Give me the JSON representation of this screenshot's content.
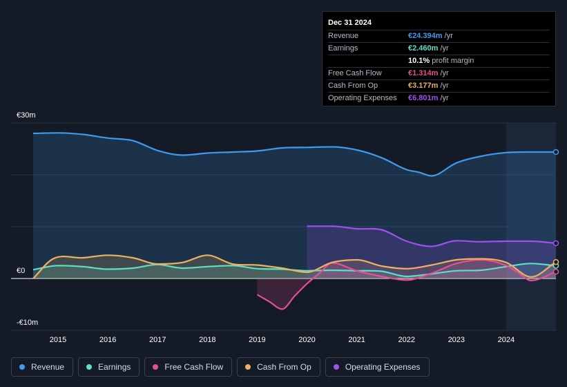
{
  "tooltip": {
    "date": "Dec 31 2024",
    "rows": [
      {
        "label": "Revenue",
        "value": "€24.394m",
        "unit": "/yr",
        "color": "#3d9bef"
      },
      {
        "label": "Earnings",
        "value": "€2.460m",
        "unit": "/yr",
        "color": "#5ce0c7"
      },
      {
        "label": "",
        "value": "10.1%",
        "unit": "profit margin",
        "color": "#ffffff"
      },
      {
        "label": "Free Cash Flow",
        "value": "€1.314m",
        "unit": "/yr",
        "color": "#e8508e"
      },
      {
        "label": "Cash From Op",
        "value": "€3.177m",
        "unit": "/yr",
        "color": "#efb060"
      },
      {
        "label": "Operating Expenses",
        "value": "€6.801m",
        "unit": "/yr",
        "color": "#a150f0"
      }
    ]
  },
  "legend": [
    {
      "label": "Revenue",
      "color": "#3d9bef"
    },
    {
      "label": "Earnings",
      "color": "#5ce0c7"
    },
    {
      "label": "Free Cash Flow",
      "color": "#e8508e"
    },
    {
      "label": "Cash From Op",
      "color": "#efb060"
    },
    {
      "label": "Operating Expenses",
      "color": "#a150f0"
    }
  ],
  "chart_data": {
    "type": "area",
    "title": "",
    "xlabel": "",
    "ylabel": "",
    "currency_unit": "€m",
    "ylim": [
      -10,
      30
    ],
    "yticks": [
      {
        "value": 30,
        "label": "€30m"
      },
      {
        "value": 0,
        "label": "€0"
      },
      {
        "value": -10,
        "label": "-€10m"
      }
    ],
    "xlim": [
      2014.5,
      2025.0
    ],
    "xticks": [
      {
        "value": 2015,
        "label": "2015"
      },
      {
        "value": 2016,
        "label": "2016"
      },
      {
        "value": 2017,
        "label": "2017"
      },
      {
        "value": 2018,
        "label": "2018"
      },
      {
        "value": 2019,
        "label": "2019"
      },
      {
        "value": 2020,
        "label": "2020"
      },
      {
        "value": 2021,
        "label": "2021"
      },
      {
        "value": 2022,
        "label": "2022"
      },
      {
        "value": 2023,
        "label": "2023"
      },
      {
        "value": 2024,
        "label": "2024"
      }
    ],
    "highlight_start": 2024.0,
    "series": [
      {
        "name": "Revenue",
        "color": "#3d9bef",
        "x": [
          2014.5,
          2015.0,
          2015.5,
          2016.0,
          2016.5,
          2017.0,
          2017.5,
          2018.0,
          2018.5,
          2019.0,
          2019.5,
          2020.0,
          2020.5,
          2021.0,
          2021.5,
          2022.0,
          2022.25,
          2022.5,
          2023.0,
          2023.5,
          2024.0,
          2024.5,
          2025.0
        ],
        "values": [
          28.0,
          28.1,
          27.8,
          27.1,
          26.6,
          24.7,
          23.8,
          24.2,
          24.4,
          24.6,
          25.2,
          25.3,
          25.4,
          24.8,
          23.3,
          21.0,
          20.5,
          19.8,
          22.3,
          23.6,
          24.3,
          24.4,
          24.4
        ]
      },
      {
        "name": "Earnings",
        "color": "#5ce0c7",
        "x": [
          2014.5,
          2015.0,
          2015.5,
          2016.0,
          2016.5,
          2017.0,
          2017.5,
          2018.0,
          2018.5,
          2019.0,
          2019.5,
          2020.0,
          2020.5,
          2021.0,
          2021.5,
          2022.0,
          2022.5,
          2023.0,
          2023.5,
          2024.0,
          2024.5,
          2025.0
        ],
        "values": [
          1.7,
          2.5,
          2.3,
          1.8,
          2.0,
          2.7,
          2.0,
          2.3,
          2.5,
          1.9,
          1.8,
          1.5,
          1.6,
          1.5,
          1.4,
          0.4,
          0.9,
          1.5,
          1.6,
          2.3,
          2.9,
          2.46
        ]
      },
      {
        "name": "Free Cash Flow",
        "color": "#e8508e",
        "x": [
          2019.0,
          2019.25,
          2019.5,
          2019.75,
          2020.0,
          2020.25,
          2020.5,
          2021.0,
          2021.5,
          2022.0,
          2022.5,
          2023.0,
          2023.5,
          2024.0,
          2024.25,
          2024.5,
          2025.0
        ],
        "values": [
          -3.1,
          -4.5,
          -5.9,
          -3.4,
          -1.0,
          1.0,
          3.0,
          1.5,
          0.4,
          -0.3,
          1.0,
          2.9,
          3.6,
          2.5,
          1.1,
          -0.4,
          1.31
        ]
      },
      {
        "name": "Cash From Op",
        "color": "#efb060",
        "x": [
          2014.5,
          2014.9,
          2015.5,
          2016.0,
          2016.5,
          2017.0,
          2017.5,
          2018.0,
          2018.5,
          2019.0,
          2019.5,
          2020.0,
          2020.5,
          2021.0,
          2021.5,
          2022.0,
          2022.5,
          2023.0,
          2023.5,
          2024.0,
          2024.5,
          2025.0
        ],
        "values": [
          0.0,
          3.8,
          4.0,
          4.5,
          4.0,
          2.8,
          3.1,
          4.5,
          2.8,
          2.6,
          2.0,
          1.2,
          3.1,
          3.6,
          2.4,
          1.9,
          2.6,
          3.6,
          3.8,
          3.1,
          0.3,
          3.18
        ]
      },
      {
        "name": "Operating Expenses",
        "color": "#a150f0",
        "x": [
          2020.0,
          2020.5,
          2021.0,
          2021.5,
          2022.0,
          2022.5,
          2023.0,
          2023.5,
          2024.0,
          2024.5,
          2025.0
        ],
        "values": [
          10.1,
          10.1,
          9.6,
          9.4,
          7.2,
          6.2,
          7.3,
          7.1,
          7.2,
          7.2,
          6.8
        ]
      }
    ]
  }
}
